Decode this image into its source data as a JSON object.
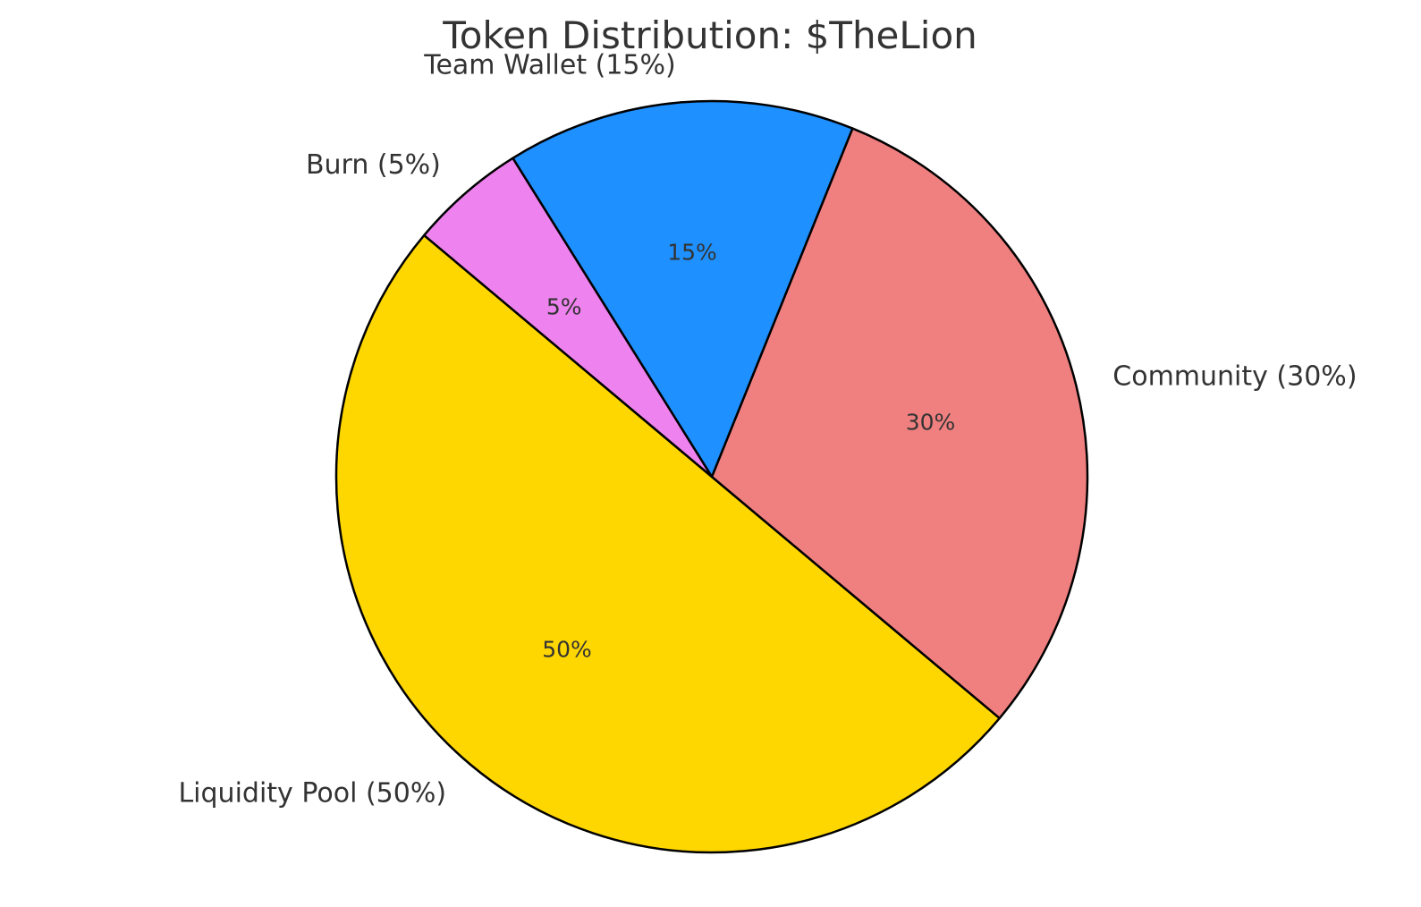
{
  "chart_data": {
    "type": "pie",
    "title": "Token Distribution: $TheLion",
    "start_angle_deg": 140,
    "direction": "counterclockwise",
    "slices": [
      {
        "label": "Liquidity Pool (50%)",
        "value": 50,
        "pct_label": "50%",
        "color": "#FFD700"
      },
      {
        "label": "Community (30%)",
        "value": 30,
        "pct_label": "30%",
        "color": "#F08080"
      },
      {
        "label": "Team Wallet (15%)",
        "value": 15,
        "pct_label": "15%",
        "color": "#1E90FF"
      },
      {
        "label": "Burn (5%)",
        "value": 5,
        "pct_label": "5%",
        "color": "#EE82EE"
      }
    ]
  }
}
